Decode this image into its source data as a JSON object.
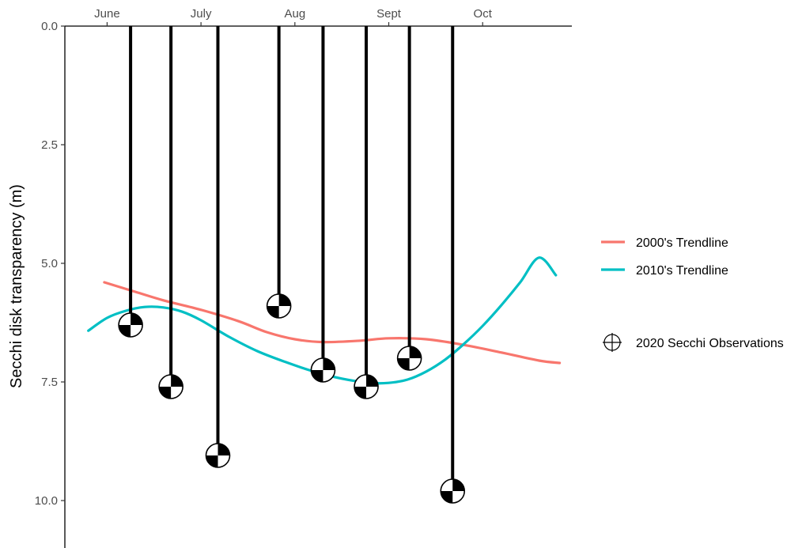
{
  "chart_data": {
    "type": "line",
    "title": "",
    "xlabel": "",
    "ylabel": "Secchi disk transparency (m)",
    "x_ticks": [
      {
        "label": "June",
        "month_pos": 6.0
      },
      {
        "label": "July",
        "month_pos": 7.0
      },
      {
        "label": "Aug",
        "month_pos": 8.0
      },
      {
        "label": "Sept",
        "month_pos": 9.0
      },
      {
        "label": "Oct",
        "month_pos": 10.0
      }
    ],
    "xlim": [
      5.55,
      10.95
    ],
    "ylim": [
      0,
      11
    ],
    "y_reversed": true,
    "y_ticks": [
      0.0,
      2.5,
      5.0,
      7.5,
      10.0
    ],
    "y_tick_labels": [
      "0.0",
      "2.5",
      "5.0",
      "7.5",
      "10.0"
    ],
    "grid": false,
    "legend_position": "right",
    "series": [
      {
        "name": "2000's Trendline",
        "color": "#F8766D",
        "x": [
          5.97,
          6.3,
          6.6,
          7.0,
          7.4,
          7.7,
          8.0,
          8.3,
          8.7,
          9.0,
          9.4,
          9.8,
          10.2,
          10.6,
          10.82
        ],
        "y": [
          5.4,
          5.6,
          5.78,
          5.98,
          6.22,
          6.45,
          6.6,
          6.66,
          6.63,
          6.58,
          6.6,
          6.72,
          6.88,
          7.05,
          7.1
        ]
      },
      {
        "name": "2010's Trendline",
        "color": "#00BFC4",
        "x": [
          5.8,
          6.0,
          6.2,
          6.4,
          6.6,
          6.8,
          7.0,
          7.3,
          7.6,
          7.9,
          8.2,
          8.5,
          8.8,
          9.0,
          9.2,
          9.4,
          9.6,
          9.8,
          10.0,
          10.2,
          10.4,
          10.6,
          10.78
        ],
        "y": [
          6.42,
          6.15,
          6.0,
          5.92,
          5.93,
          6.02,
          6.2,
          6.55,
          6.85,
          7.08,
          7.28,
          7.43,
          7.52,
          7.52,
          7.45,
          7.28,
          7.03,
          6.7,
          6.32,
          5.88,
          5.4,
          4.88,
          5.25
        ]
      }
    ],
    "observations": {
      "name": "2020 Secchi Observations",
      "x": [
        6.25,
        6.68,
        7.18,
        7.83,
        8.3,
        8.76,
        9.22,
        9.68
      ],
      "y": [
        6.3,
        7.6,
        9.05,
        5.9,
        7.25,
        7.6,
        7.0,
        9.8
      ]
    }
  }
}
